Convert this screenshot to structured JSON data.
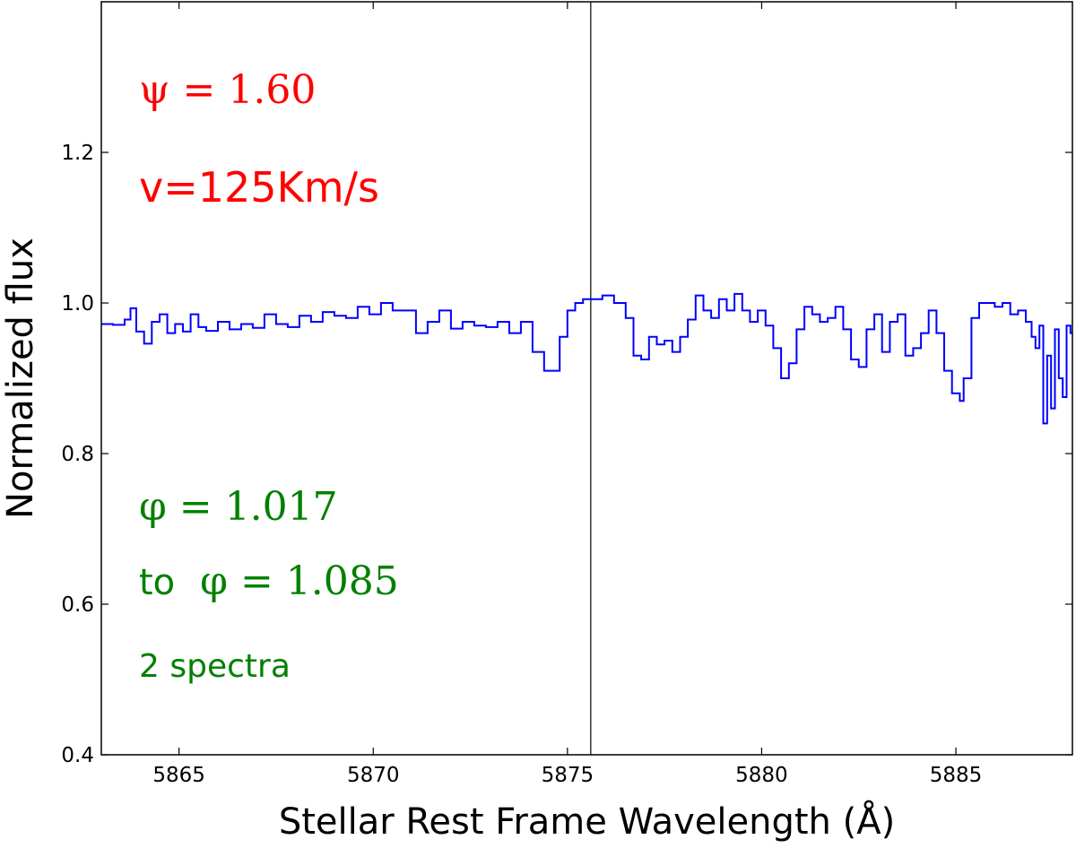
{
  "chart_data": {
    "type": "line",
    "title": "",
    "xlabel": "Stellar Rest Frame Wavelength  (Å)",
    "ylabel": "Normalized flux",
    "xlim": [
      5863.0,
      5888.0
    ],
    "ylim": [
      0.4,
      1.4
    ],
    "grid": false,
    "style": "steps",
    "xticks": [
      5865,
      5870,
      5875,
      5880,
      5885
    ],
    "yticks": [
      0.4,
      0.6,
      0.8,
      1.0,
      1.2
    ],
    "xtick_labels": [
      "5865",
      "5870",
      "5875",
      "5880",
      "5885"
    ],
    "ytick_labels": [
      "0.4",
      "0.6",
      "0.8",
      "1.0",
      "1.2"
    ],
    "vline": 5875.6,
    "series": [
      {
        "color": "#0000ff",
        "x": [
          5863.0,
          5863.3,
          5863.6,
          5863.75,
          5863.9,
          5864.1,
          5864.3,
          5864.5,
          5864.7,
          5864.9,
          5865.1,
          5865.3,
          5865.5,
          5865.7,
          5866.0,
          5866.3,
          5866.6,
          5866.9,
          5867.2,
          5867.5,
          5867.8,
          5868.1,
          5868.4,
          5868.7,
          5869.0,
          5869.3,
          5869.6,
          5869.9,
          5870.2,
          5870.5,
          5870.8,
          5871.1,
          5871.4,
          5871.7,
          5872.0,
          5872.3,
          5872.6,
          5872.9,
          5873.2,
          5873.5,
          5873.8,
          5874.1,
          5874.4,
          5874.6,
          5874.8,
          5875.0,
          5875.2,
          5875.4,
          5875.6,
          5875.9,
          5876.2,
          5876.5,
          5876.7,
          5876.9,
          5877.1,
          5877.3,
          5877.5,
          5877.7,
          5877.9,
          5878.1,
          5878.3,
          5878.5,
          5878.7,
          5878.9,
          5879.1,
          5879.3,
          5879.5,
          5879.7,
          5879.9,
          5880.1,
          5880.3,
          5880.5,
          5880.7,
          5880.9,
          5881.1,
          5881.3,
          5881.5,
          5881.7,
          5881.9,
          5882.1,
          5882.3,
          5882.5,
          5882.7,
          5882.9,
          5883.1,
          5883.3,
          5883.5,
          5883.7,
          5883.9,
          5884.1,
          5884.3,
          5884.5,
          5884.7,
          5884.9,
          5885.1,
          5885.2,
          5885.4,
          5885.6,
          5885.8,
          5886.0,
          5886.2,
          5886.4,
          5886.6,
          5886.8,
          5886.95,
          5887.05,
          5887.15,
          5887.25,
          5887.35,
          5887.45,
          5887.55,
          5887.65,
          5887.75,
          5887.85,
          5887.95
        ],
        "y": [
          0.972,
          0.971,
          0.978,
          0.993,
          0.962,
          0.946,
          0.975,
          0.985,
          0.96,
          0.972,
          0.962,
          0.985,
          0.968,
          0.963,
          0.975,
          0.965,
          0.972,
          0.967,
          0.985,
          0.972,
          0.968,
          0.983,
          0.975,
          0.988,
          0.983,
          0.98,
          0.995,
          0.985,
          1.0,
          0.99,
          0.99,
          0.96,
          0.975,
          0.99,
          0.966,
          0.975,
          0.97,
          0.968,
          0.975,
          0.96,
          0.975,
          0.935,
          0.91,
          0.91,
          0.955,
          0.99,
          1.0,
          1.005,
          1.005,
          1.01,
          1.0,
          0.98,
          0.93,
          0.925,
          0.955,
          0.945,
          0.95,
          0.935,
          0.955,
          0.978,
          1.01,
          0.99,
          0.98,
          1.005,
          0.99,
          1.012,
          0.99,
          0.975,
          0.99,
          0.97,
          0.94,
          0.9,
          0.92,
          0.965,
          0.995,
          0.985,
          0.975,
          0.98,
          0.995,
          0.965,
          0.925,
          0.915,
          0.965,
          0.985,
          0.935,
          0.975,
          0.985,
          0.93,
          0.94,
          0.96,
          0.99,
          0.96,
          0.91,
          0.88,
          0.87,
          0.9,
          0.98,
          1.0,
          1.0,
          0.995,
          1.0,
          0.985,
          0.99,
          0.975,
          0.955,
          0.94,
          0.97,
          0.84,
          0.93,
          0.86,
          0.965,
          0.9,
          0.875,
          0.97,
          0.96
        ]
      }
    ],
    "annotations": {
      "psi": "ψ = 1.60",
      "velocity": "v=125Km/s",
      "phase_start": "φ = 1.017",
      "phase_end_prefix": "to",
      "phase_end": "φ = 1.085",
      "spectra_count": "2 spectra"
    },
    "colors": {
      "spectrum": "#0000ff",
      "psi_text": "#ff0000",
      "phase_text": "#008000",
      "vline": "#000000"
    }
  }
}
